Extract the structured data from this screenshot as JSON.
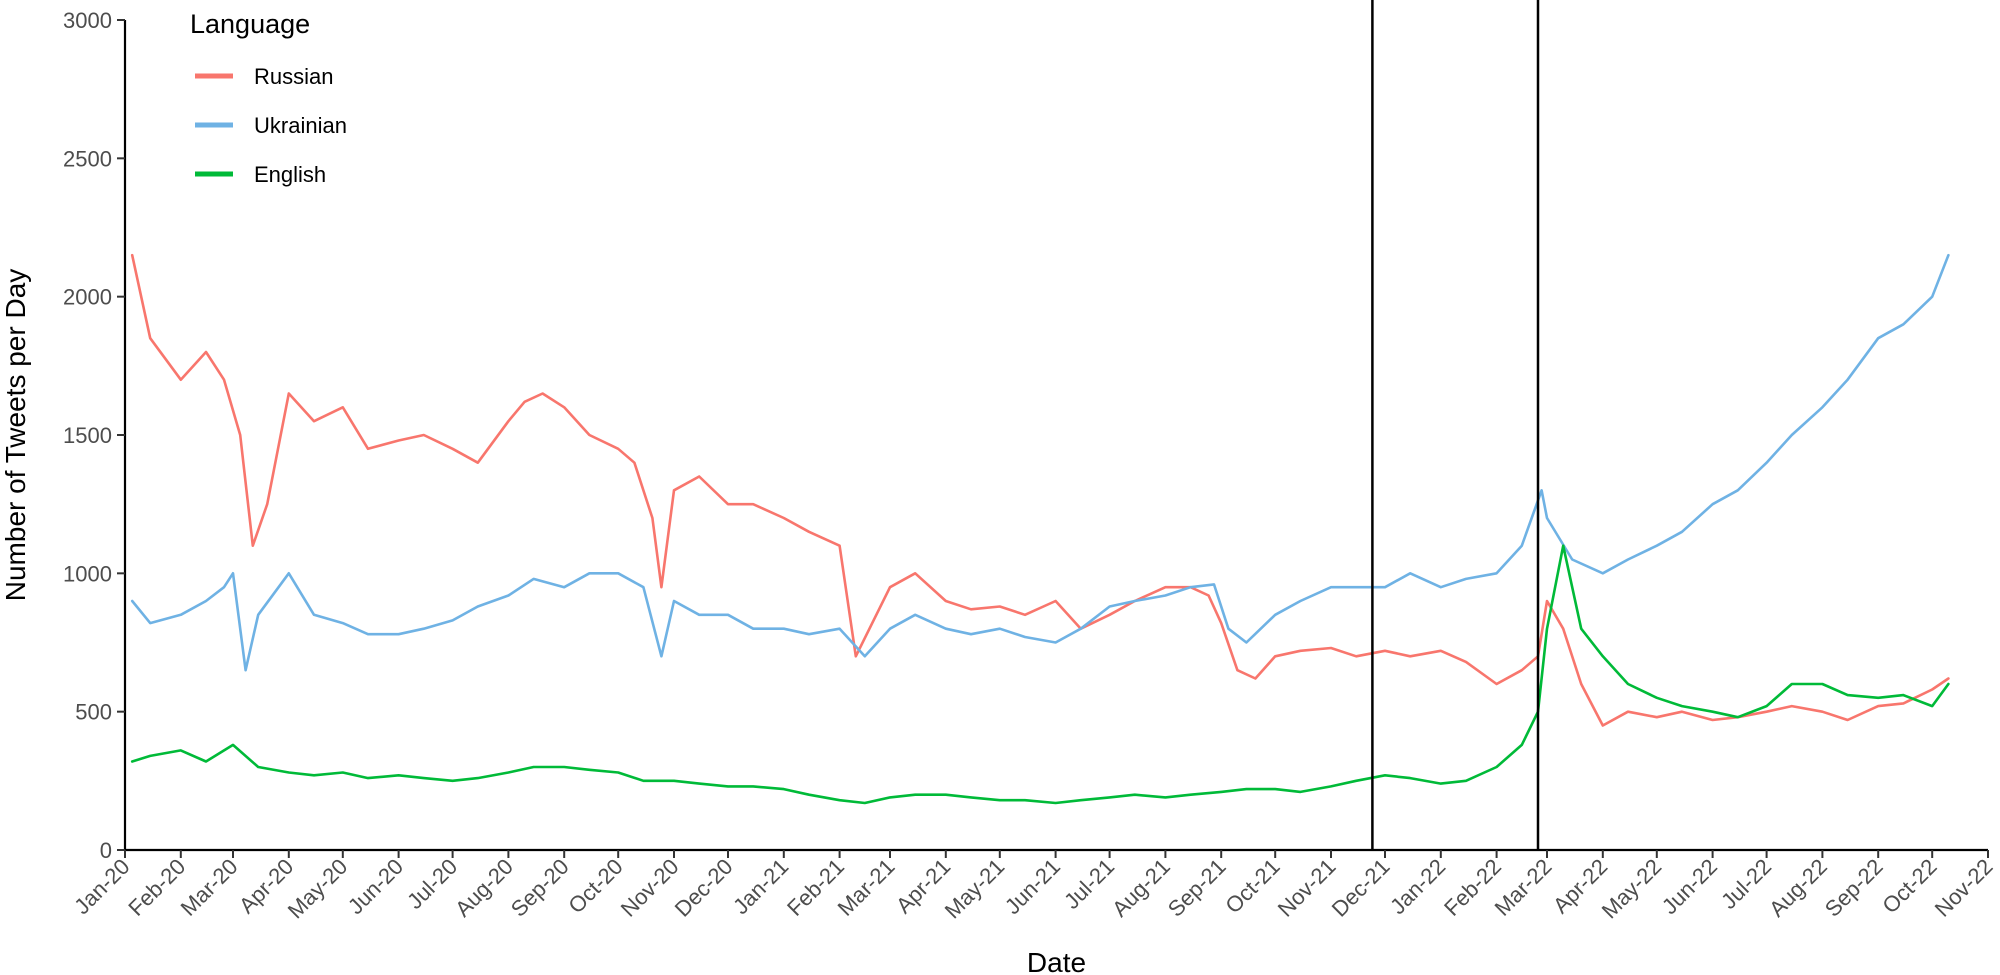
{
  "chart_data": {
    "type": "line",
    "title": "",
    "xlabel": "Date",
    "ylabel": "Number of Tweets per Day",
    "x_range": [
      "2020-01-01",
      "2022-11-01"
    ],
    "ylim": [
      0,
      3000
    ],
    "y_ticks": [
      0,
      500,
      1000,
      1500,
      2000,
      2500,
      3000
    ],
    "x_ticks": [
      {
        "date": "2020-01-01",
        "label": "Jan-20"
      },
      {
        "date": "2020-02-01",
        "label": "Feb-20"
      },
      {
        "date": "2020-03-01",
        "label": "Mar-20"
      },
      {
        "date": "2020-04-01",
        "label": "Apr-20"
      },
      {
        "date": "2020-05-01",
        "label": "May-20"
      },
      {
        "date": "2020-06-01",
        "label": "Jun-20"
      },
      {
        "date": "2020-07-01",
        "label": "Jul-20"
      },
      {
        "date": "2020-08-01",
        "label": "Aug-20"
      },
      {
        "date": "2020-09-01",
        "label": "Sep-20"
      },
      {
        "date": "2020-10-01",
        "label": "Oct-20"
      },
      {
        "date": "2020-11-01",
        "label": "Nov-20"
      },
      {
        "date": "2020-12-01",
        "label": "Dec-20"
      },
      {
        "date": "2021-01-01",
        "label": "Jan-21"
      },
      {
        "date": "2021-02-01",
        "label": "Feb-21"
      },
      {
        "date": "2021-03-01",
        "label": "Mar-21"
      },
      {
        "date": "2021-04-01",
        "label": "Apr-21"
      },
      {
        "date": "2021-05-01",
        "label": "May-21"
      },
      {
        "date": "2021-06-01",
        "label": "Jun-21"
      },
      {
        "date": "2021-07-01",
        "label": "Jul-21"
      },
      {
        "date": "2021-08-01",
        "label": "Aug-21"
      },
      {
        "date": "2021-09-01",
        "label": "Sep-21"
      },
      {
        "date": "2021-10-01",
        "label": "Oct-21"
      },
      {
        "date": "2021-11-01",
        "label": "Nov-21"
      },
      {
        "date": "2021-12-01",
        "label": "Dec-21"
      },
      {
        "date": "2022-01-01",
        "label": "Jan-22"
      },
      {
        "date": "2022-02-01",
        "label": "Feb-22"
      },
      {
        "date": "2022-03-01",
        "label": "Mar-22"
      },
      {
        "date": "2022-04-01",
        "label": "Apr-22"
      },
      {
        "date": "2022-05-01",
        "label": "May-22"
      },
      {
        "date": "2022-06-01",
        "label": "Jun-22"
      },
      {
        "date": "2022-07-01",
        "label": "Jul-22"
      },
      {
        "date": "2022-08-01",
        "label": "Aug-22"
      },
      {
        "date": "2022-09-01",
        "label": "Sep-22"
      },
      {
        "date": "2022-10-01",
        "label": "Oct-22"
      },
      {
        "date": "2022-11-01",
        "label": "Nov-22"
      }
    ],
    "vlines": [
      "2021-11-24",
      "2022-02-24"
    ],
    "grid": false,
    "legend": {
      "title": "Language",
      "position": "top-left"
    },
    "series": [
      {
        "name": "Russian",
        "color": "#F8766D",
        "x": [
          "2020-01-05",
          "2020-01-15",
          "2020-02-01",
          "2020-02-15",
          "2020-02-25",
          "2020-03-05",
          "2020-03-12",
          "2020-03-20",
          "2020-04-01",
          "2020-04-15",
          "2020-05-01",
          "2020-05-15",
          "2020-06-01",
          "2020-06-15",
          "2020-07-01",
          "2020-07-15",
          "2020-08-01",
          "2020-08-10",
          "2020-08-20",
          "2020-09-01",
          "2020-09-15",
          "2020-10-01",
          "2020-10-10",
          "2020-10-20",
          "2020-10-25",
          "2020-11-01",
          "2020-11-15",
          "2020-12-01",
          "2020-12-15",
          "2021-01-01",
          "2021-01-15",
          "2021-02-01",
          "2021-02-10",
          "2021-03-01",
          "2021-03-15",
          "2021-04-01",
          "2021-04-15",
          "2021-05-01",
          "2021-05-15",
          "2021-06-01",
          "2021-06-15",
          "2021-07-01",
          "2021-07-15",
          "2021-08-01",
          "2021-08-15",
          "2021-08-25",
          "2021-09-01",
          "2021-09-10",
          "2021-09-20",
          "2021-10-01",
          "2021-10-15",
          "2021-11-01",
          "2021-11-15",
          "2021-12-01",
          "2021-12-15",
          "2022-01-01",
          "2022-01-15",
          "2022-02-01",
          "2022-02-15",
          "2022-02-24",
          "2022-03-01",
          "2022-03-10",
          "2022-03-20",
          "2022-04-01",
          "2022-04-15",
          "2022-05-01",
          "2022-05-15",
          "2022-06-01",
          "2022-06-15",
          "2022-07-01",
          "2022-07-15",
          "2022-08-01",
          "2022-08-15",
          "2022-09-01",
          "2022-09-15",
          "2022-10-01",
          "2022-10-10"
        ],
        "values": [
          2150,
          1850,
          1700,
          1800,
          1700,
          1500,
          1100,
          1250,
          1650,
          1550,
          1600,
          1450,
          1480,
          1500,
          1450,
          1400,
          1550,
          1620,
          1650,
          1600,
          1500,
          1450,
          1400,
          1200,
          950,
          1300,
          1350,
          1250,
          1250,
          1200,
          1150,
          1100,
          700,
          950,
          1000,
          900,
          870,
          880,
          850,
          900,
          800,
          850,
          900,
          950,
          950,
          920,
          820,
          650,
          620,
          700,
          720,
          730,
          700,
          720,
          700,
          720,
          680,
          600,
          650,
          700,
          900,
          800,
          600,
          450,
          500,
          480,
          500,
          470,
          480,
          500,
          520,
          500,
          470,
          520,
          530,
          580,
          620
        ]
      },
      {
        "name": "Ukrainian",
        "color": "#6FB2E4",
        "x": [
          "2020-01-05",
          "2020-01-15",
          "2020-02-01",
          "2020-02-15",
          "2020-02-25",
          "2020-03-01",
          "2020-03-08",
          "2020-03-15",
          "2020-04-01",
          "2020-04-15",
          "2020-05-01",
          "2020-05-15",
          "2020-06-01",
          "2020-06-15",
          "2020-07-01",
          "2020-07-15",
          "2020-08-01",
          "2020-08-15",
          "2020-09-01",
          "2020-09-15",
          "2020-10-01",
          "2020-10-15",
          "2020-10-25",
          "2020-11-01",
          "2020-11-15",
          "2020-12-01",
          "2020-12-15",
          "2021-01-01",
          "2021-01-15",
          "2021-02-01",
          "2021-02-15",
          "2021-03-01",
          "2021-03-15",
          "2021-04-01",
          "2021-04-15",
          "2021-05-01",
          "2021-05-15",
          "2021-06-01",
          "2021-06-15",
          "2021-07-01",
          "2021-07-15",
          "2021-08-01",
          "2021-08-15",
          "2021-08-28",
          "2021-09-05",
          "2021-09-15",
          "2021-10-01",
          "2021-10-15",
          "2021-11-01",
          "2021-11-15",
          "2021-12-01",
          "2021-12-15",
          "2022-01-01",
          "2022-01-15",
          "2022-02-01",
          "2022-02-15",
          "2022-02-26",
          "2022-03-01",
          "2022-03-15",
          "2022-04-01",
          "2022-04-15",
          "2022-05-01",
          "2022-05-15",
          "2022-06-01",
          "2022-06-15",
          "2022-07-01",
          "2022-07-15",
          "2022-08-01",
          "2022-08-15",
          "2022-09-01",
          "2022-09-15",
          "2022-10-01",
          "2022-10-10"
        ],
        "values": [
          900,
          820,
          850,
          900,
          950,
          1000,
          650,
          850,
          1000,
          850,
          820,
          780,
          780,
          800,
          830,
          880,
          920,
          980,
          950,
          1000,
          1000,
          950,
          700,
          900,
          850,
          850,
          800,
          800,
          780,
          800,
          700,
          800,
          850,
          800,
          780,
          800,
          770,
          750,
          800,
          880,
          900,
          920,
          950,
          960,
          800,
          750,
          850,
          900,
          950,
          950,
          950,
          1000,
          950,
          980,
          1000,
          1100,
          1300,
          1200,
          1050,
          1000,
          1050,
          1100,
          1150,
          1250,
          1300,
          1400,
          1500,
          1600,
          1700,
          1850,
          1900,
          2000,
          2150
        ]
      },
      {
        "name": "English",
        "color": "#00BA38",
        "x": [
          "2020-01-05",
          "2020-01-15",
          "2020-02-01",
          "2020-02-15",
          "2020-03-01",
          "2020-03-15",
          "2020-04-01",
          "2020-04-15",
          "2020-05-01",
          "2020-05-15",
          "2020-06-01",
          "2020-06-15",
          "2020-07-01",
          "2020-07-15",
          "2020-08-01",
          "2020-08-15",
          "2020-09-01",
          "2020-09-15",
          "2020-10-01",
          "2020-10-15",
          "2020-11-01",
          "2020-11-15",
          "2020-12-01",
          "2020-12-15",
          "2021-01-01",
          "2021-01-15",
          "2021-02-01",
          "2021-02-15",
          "2021-03-01",
          "2021-03-15",
          "2021-04-01",
          "2021-04-15",
          "2021-05-01",
          "2021-05-15",
          "2021-06-01",
          "2021-06-15",
          "2021-07-01",
          "2021-07-15",
          "2021-08-01",
          "2021-08-15",
          "2021-09-01",
          "2021-09-15",
          "2021-10-01",
          "2021-10-15",
          "2021-11-01",
          "2021-11-15",
          "2021-12-01",
          "2021-12-15",
          "2022-01-01",
          "2022-01-15",
          "2022-02-01",
          "2022-02-15",
          "2022-02-24",
          "2022-03-01",
          "2022-03-10",
          "2022-03-20",
          "2022-04-01",
          "2022-04-15",
          "2022-05-01",
          "2022-05-15",
          "2022-06-01",
          "2022-06-15",
          "2022-07-01",
          "2022-07-15",
          "2022-08-01",
          "2022-08-15",
          "2022-09-01",
          "2022-09-15",
          "2022-10-01",
          "2022-10-10"
        ],
        "values": [
          320,
          340,
          360,
          320,
          380,
          300,
          280,
          270,
          280,
          260,
          270,
          260,
          250,
          260,
          280,
          300,
          300,
          290,
          280,
          250,
          250,
          240,
          230,
          230,
          220,
          200,
          180,
          170,
          190,
          200,
          200,
          190,
          180,
          180,
          170,
          180,
          190,
          200,
          190,
          200,
          210,
          220,
          220,
          210,
          230,
          250,
          270,
          260,
          240,
          250,
          300,
          380,
          500,
          800,
          1100,
          800,
          700,
          600,
          550,
          520,
          500,
          480,
          520,
          600,
          600,
          560,
          550,
          560,
          520,
          600
        ]
      }
    ]
  }
}
